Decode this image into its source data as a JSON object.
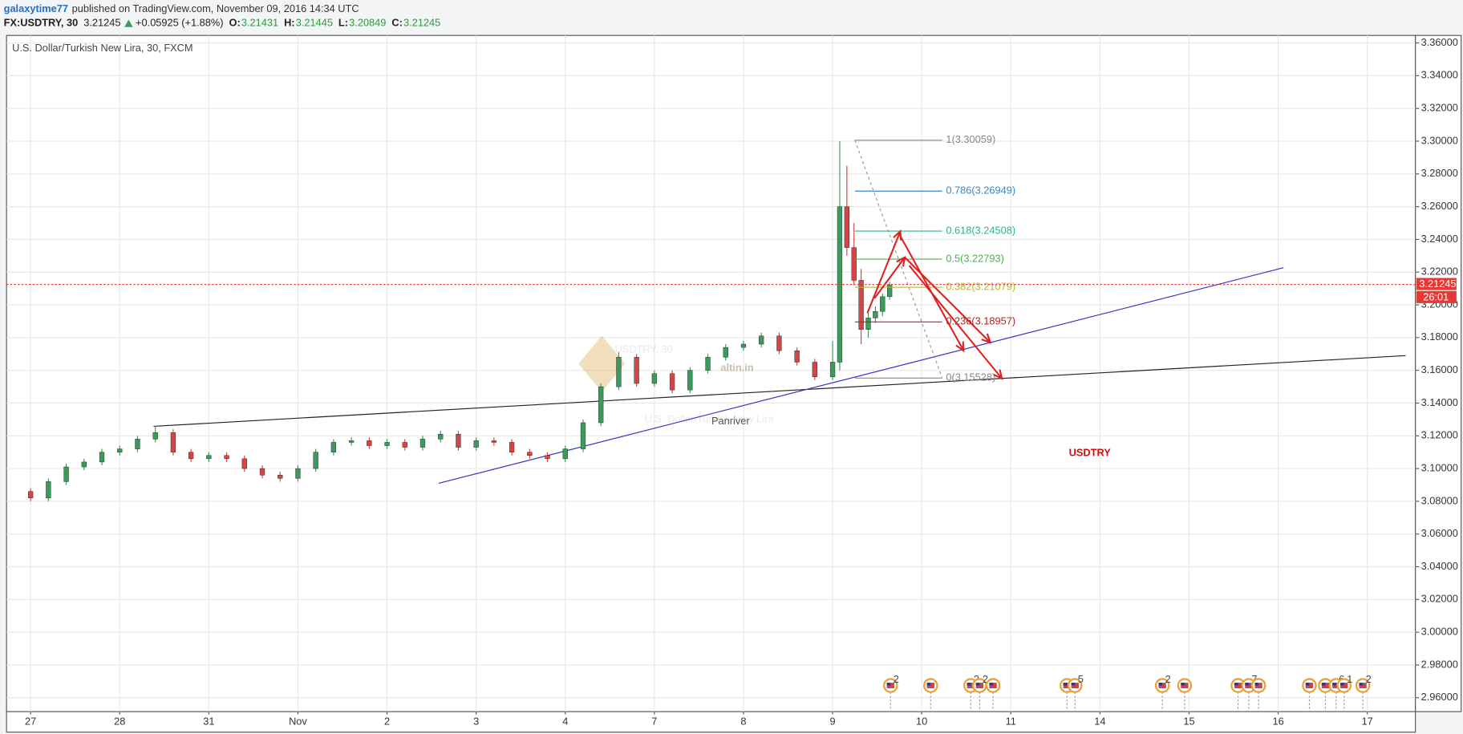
{
  "header": {
    "author": "galaxytime77",
    "published": "published on TradingView.com, November 09, 2016 14:34 UTC",
    "symbol": "FX:USDTRY, 30",
    "last": "3.21245",
    "change": "+0.05925 (+1.88%)",
    "ohlc": [
      {
        "label": "O:",
        "value": "3.21431"
      },
      {
        "label": "H:",
        "value": "3.21445"
      },
      {
        "label": "L:",
        "value": "3.20849"
      },
      {
        "label": "C:",
        "value": "3.21245"
      }
    ]
  },
  "chart_data": {
    "type": "candlestick",
    "title": "U.S. Dollar/Turkish New Lira, 30, FXCM",
    "x": [
      0,
      0.2,
      0.4,
      0.6,
      0.8,
      1.0,
      1.2,
      1.4,
      1.6,
      1.8,
      2.0,
      2.2,
      2.4,
      2.6,
      2.8,
      3.0,
      3.2,
      3.4,
      3.6,
      3.8,
      4.0,
      4.2,
      4.4,
      4.6,
      4.8,
      5.0,
      5.2,
      5.4,
      5.6,
      5.8,
      6.0,
      6.2,
      6.4,
      6.6,
      6.8,
      7.0,
      7.2,
      7.4,
      7.6,
      7.8,
      8.0,
      8.2,
      8.4,
      8.6,
      8.8,
      9.0,
      9.08,
      9.16,
      9.24,
      9.32,
      9.4,
      9.48,
      9.56,
      9.64
    ],
    "open": [
      3.086,
      3.082,
      3.092,
      3.101,
      3.104,
      3.11,
      3.112,
      3.118,
      3.122,
      3.11,
      3.106,
      3.108,
      3.106,
      3.1,
      3.096,
      3.094,
      3.1,
      3.11,
      3.116,
      3.117,
      3.114,
      3.116,
      3.113,
      3.118,
      3.121,
      3.113,
      3.117,
      3.116,
      3.11,
      3.108,
      3.106,
      3.112,
      3.128,
      3.15,
      3.168,
      3.152,
      3.158,
      3.148,
      3.16,
      3.168,
      3.174,
      3.176,
      3.181,
      3.172,
      3.165,
      3.156,
      3.165,
      3.26,
      3.235,
      3.215,
      3.185,
      3.192,
      3.196,
      3.205
    ],
    "high": [
      3.088,
      3.094,
      3.103,
      3.106,
      3.112,
      3.114,
      3.12,
      3.126,
      3.124,
      3.112,
      3.11,
      3.11,
      3.108,
      3.102,
      3.098,
      3.102,
      3.112,
      3.118,
      3.119,
      3.119,
      3.118,
      3.118,
      3.12,
      3.123,
      3.123,
      3.119,
      3.119,
      3.118,
      3.112,
      3.11,
      3.114,
      3.13,
      3.152,
      3.171,
      3.17,
      3.16,
      3.16,
      3.162,
      3.17,
      3.176,
      3.178,
      3.183,
      3.183,
      3.174,
      3.167,
      3.178,
      3.3,
      3.285,
      3.25,
      3.222,
      3.195,
      3.199,
      3.207,
      3.214
    ],
    "low": [
      3.08,
      3.08,
      3.09,
      3.099,
      3.102,
      3.108,
      3.11,
      3.116,
      3.108,
      3.104,
      3.104,
      3.104,
      3.098,
      3.094,
      3.092,
      3.092,
      3.098,
      3.108,
      3.114,
      3.112,
      3.112,
      3.111,
      3.111,
      3.116,
      3.111,
      3.111,
      3.114,
      3.108,
      3.106,
      3.104,
      3.104,
      3.11,
      3.126,
      3.148,
      3.15,
      3.15,
      3.146,
      3.146,
      3.158,
      3.166,
      3.172,
      3.174,
      3.17,
      3.163,
      3.154,
      3.154,
      3.16,
      3.23,
      3.212,
      3.176,
      3.18,
      3.189,
      3.193,
      3.203
    ],
    "close": [
      3.082,
      3.092,
      3.101,
      3.104,
      3.11,
      3.112,
      3.118,
      3.122,
      3.11,
      3.106,
      3.108,
      3.106,
      3.1,
      3.096,
      3.094,
      3.1,
      3.11,
      3.116,
      3.117,
      3.114,
      3.116,
      3.113,
      3.118,
      3.121,
      3.113,
      3.117,
      3.116,
      3.11,
      3.108,
      3.106,
      3.112,
      3.128,
      3.15,
      3.168,
      3.152,
      3.158,
      3.148,
      3.16,
      3.168,
      3.174,
      3.176,
      3.181,
      3.172,
      3.165,
      3.156,
      3.165,
      3.26,
      3.235,
      3.215,
      3.185,
      3.192,
      3.196,
      3.205,
      3.212
    ],
    "up_color": "#3d9a5c",
    "down_color": "#d64545",
    "xlim": [
      -0.27,
      15.54
    ],
    "xticks": [
      {
        "value": 0,
        "label": "27"
      },
      {
        "value": 1,
        "label": "28"
      },
      {
        "value": 2,
        "label": "31"
      },
      {
        "value": 3,
        "label": "Nov"
      },
      {
        "value": 4,
        "label": "2"
      },
      {
        "value": 5,
        "label": "3"
      },
      {
        "value": 6,
        "label": "4"
      },
      {
        "value": 7,
        "label": "7"
      },
      {
        "value": 8,
        "label": "8"
      },
      {
        "value": 9,
        "label": "9"
      },
      {
        "value": 10,
        "label": "10"
      },
      {
        "value": 11,
        "label": "11"
      },
      {
        "value": 12,
        "label": "14"
      },
      {
        "value": 13,
        "label": "15"
      },
      {
        "value": 14,
        "label": "16"
      },
      {
        "value": 15,
        "label": "17"
      }
    ],
    "ylim": [
      2.9515,
      3.3646
    ],
    "yticks": [
      {
        "value": 2.96,
        "label": "2.96000"
      },
      {
        "value": 2.98,
        "label": "2.98000"
      },
      {
        "value": 3.0,
        "label": "3.00000"
      },
      {
        "value": 3.02,
        "label": "3.02000"
      },
      {
        "value": 3.04,
        "label": "3.04000"
      },
      {
        "value": 3.06,
        "label": "3.06000"
      },
      {
        "value": 3.08,
        "label": "3.08000"
      },
      {
        "value": 3.1,
        "label": "3.10000"
      },
      {
        "value": 3.12,
        "label": "3.12000"
      },
      {
        "value": 3.14,
        "label": "3.14000"
      },
      {
        "value": 3.16,
        "label": "3.16000"
      },
      {
        "value": 3.18,
        "label": "3.18000"
      },
      {
        "value": 3.2,
        "label": "3.20000"
      },
      {
        "value": 3.22,
        "label": "3.22000"
      },
      {
        "value": 3.24,
        "label": "3.24000"
      },
      {
        "value": 3.26,
        "label": "3.26000"
      },
      {
        "value": 3.28,
        "label": "3.28000"
      },
      {
        "value": 3.3,
        "label": "3.30000"
      },
      {
        "value": 3.32,
        "label": "3.32000"
      },
      {
        "value": 3.34,
        "label": "3.34000"
      },
      {
        "value": 3.36,
        "label": "3.36000"
      }
    ],
    "grid": true,
    "last_price": {
      "value": 3.21245,
      "countdown": "26:01",
      "color": "#e53935"
    },
    "fibonacci": {
      "x": [
        9.25,
        10.23
      ],
      "levels": [
        {
          "label": "1(3.30059)",
          "value": 3.30059,
          "color": "#888888"
        },
        {
          "label": "0.786(3.26949)",
          "value": 3.26949,
          "color": "#3d85c6"
        },
        {
          "label": "0.618(3.24508)",
          "value": 3.24508,
          "color": "#2bb38f"
        },
        {
          "label": "0.5(3.22793)",
          "value": 3.22793,
          "color": "#4caf50"
        },
        {
          "label": "0.382(3.21079)",
          "value": 3.21079,
          "color": "#b5b82c"
        },
        {
          "label": "0.236(3.18957)",
          "value": 3.18957,
          "color": "#b22222"
        },
        {
          "label": "0(3.15528)",
          "value": 3.15528,
          "color": "#888888"
        }
      ]
    },
    "trendlines": [
      {
        "x": [
          1.38,
          15.43
        ],
        "y": [
          3.1258,
          3.169
        ],
        "color": "#222222"
      },
      {
        "x": [
          4.58,
          14.06
        ],
        "y": [
          3.091,
          3.2227
        ],
        "color": "#3333cc"
      }
    ],
    "arrows": [
      {
        "x": [
          9.39,
          9.76
        ],
        "y": [
          3.195,
          3.245
        ]
      },
      {
        "x": [
          9.47,
          9.81
        ],
        "y": [
          3.204,
          3.229
        ]
      },
      {
        "x": [
          9.74,
          10.47
        ],
        "y": [
          3.244,
          3.172
        ]
      },
      {
        "x": [
          9.81,
          10.77
        ],
        "y": [
          3.229,
          3.177
        ]
      },
      {
        "x": [
          9.86,
          10.9
        ],
        "y": [
          3.224,
          3.155
        ]
      }
    ],
    "arrow_color": "#e02020",
    "events": [
      {
        "x": 9.65,
        "label": "2"
      },
      {
        "x": 10.1
      },
      {
        "x": 10.55,
        "label": "2"
      },
      {
        "x": 10.65,
        "label": "2"
      },
      {
        "x": 10.8
      },
      {
        "x": 11.63
      },
      {
        "x": 11.72,
        "label": "5"
      },
      {
        "x": 12.7,
        "label": "2"
      },
      {
        "x": 12.95
      },
      {
        "x": 13.55
      },
      {
        "x": 13.67,
        "label": "7"
      },
      {
        "x": 13.78
      },
      {
        "x": 14.35
      },
      {
        "x": 14.53
      },
      {
        "x": 14.65,
        "label": "6"
      },
      {
        "x": 14.74,
        "label": "1"
      },
      {
        "x": 14.95,
        "label": "2"
      }
    ],
    "watermarks": {
      "symbol": "USDTRY, 30",
      "description": "U.S. Dollar/Turkish New Lira",
      "brand": "altin.in",
      "author": "Panriver"
    },
    "annotation": {
      "text": "USDTRY",
      "color": "#d01010"
    }
  }
}
